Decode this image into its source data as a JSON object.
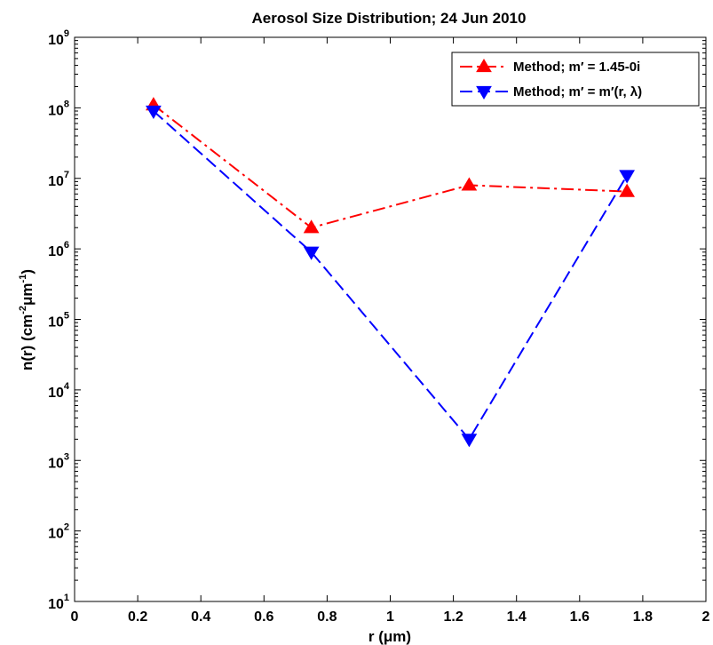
{
  "chart_data": {
    "type": "line",
    "title": "Aerosol Size Distribution; 24 Jun 2010",
    "xlabel": "r (μm)",
    "ylabel": {
      "main": "n(r) (cm",
      "exp1": "-2",
      "mid": "μm",
      "exp2": "-1",
      "end": ")"
    },
    "xlim": [
      0,
      2
    ],
    "ylim": [
      10,
      1000000000
    ],
    "yscale": "log",
    "x_ticks": [
      0,
      0.2,
      0.4,
      0.6,
      0.8,
      1,
      1.2,
      1.4,
      1.6,
      1.8,
      2
    ],
    "x_tick_labels": [
      "0",
      "0.2",
      "0.4",
      "0.6",
      "0.8",
      "1",
      "1.2",
      "1.4",
      "1.6",
      "1.8",
      "2"
    ],
    "y_ticks": [
      10,
      100,
      1000,
      10000,
      100000,
      1000000,
      10000000,
      100000000,
      1000000000
    ],
    "y_tick_exponents": [
      "1",
      "2",
      "3",
      "4",
      "5",
      "6",
      "7",
      "8",
      "9"
    ],
    "y_tick_base": "10",
    "grid": false,
    "legend_position": "top-right",
    "series": [
      {
        "name": "Method; m′ = 1.45-0i",
        "color": "#ff0000",
        "line_style": "dash-dot",
        "marker": "triangle-up",
        "x": [
          0.25,
          0.75,
          1.25,
          1.75
        ],
        "y": [
          110000000,
          2000000,
          8000000,
          6500000
        ]
      },
      {
        "name": "Method; m′ = m′(r, λ)",
        "color": "#0000ff",
        "line_style": "dashed",
        "marker": "triangle-down",
        "x": [
          0.25,
          0.75,
          1.25,
          1.75
        ],
        "y": [
          90000000,
          900000,
          2000,
          11000000
        ]
      }
    ]
  }
}
